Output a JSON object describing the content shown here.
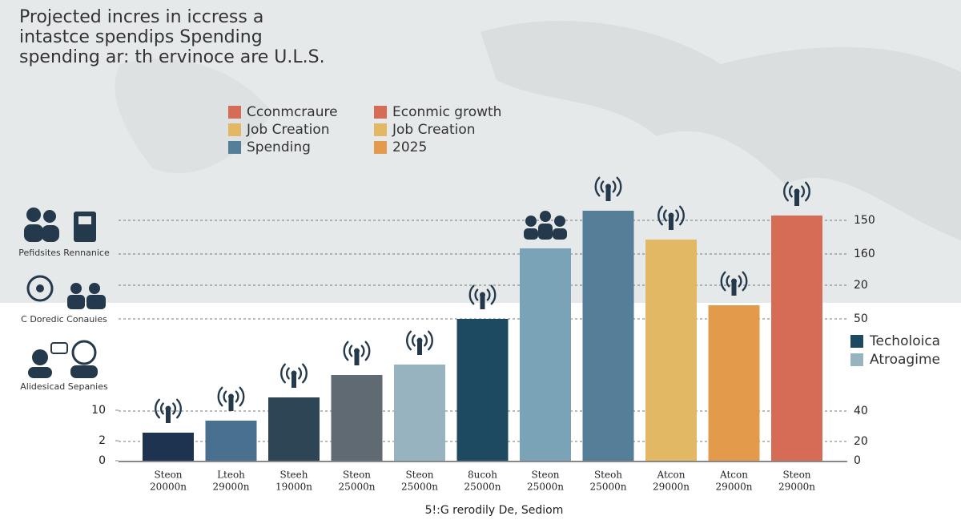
{
  "chart_data": {
    "type": "bar",
    "title": [
      "Projected incres in iccress a",
      "intastce spendips Spending",
      "spending ar: th ervinoce are U.L.S."
    ],
    "x_label": "5!:G rerodily De, Sediom",
    "side_labels": [
      "Pefidsites Rennanice",
      "C Doredic Conauies",
      "Alidesicad Sepanies"
    ],
    "categories": [
      [
        "Steon",
        "20000n"
      ],
      [
        "Lteoh",
        "29000n"
      ],
      [
        "Steeh",
        "19000n"
      ],
      [
        "Steon",
        "25000n"
      ],
      [
        "Steon",
        "25000n"
      ],
      [
        "8ucoh",
        "25000n"
      ],
      [
        "Steon",
        "25000n"
      ],
      [
        "Steoh",
        "25000n"
      ],
      [
        "Atcon",
        "29000n"
      ],
      [
        "Atcon",
        "29000n"
      ],
      [
        "Steon",
        "29000n"
      ]
    ],
    "values": [
      17.5,
      25,
      39.5,
      53.5,
      60,
      88.5,
      132.5,
      156,
      138,
      97,
      153
    ],
    "colors": [
      "#1e3350",
      "#4a7090",
      "#2e4555",
      "#5f6a72",
      "#97b3c0",
      "#1d4a60",
      "#7ba3b7",
      "#557f98",
      "#e2b864",
      "#e39a4a",
      "#d66b56"
    ],
    "ylim": [
      0,
      160
    ],
    "yticks": [
      {
        "value": 31.5,
        "label": "10"
      },
      {
        "value": 12.5,
        "label": "2"
      },
      0
    ],
    "y2lim": [
      0,
      160
    ],
    "y2ticks": [
      150,
      {
        "value": 129,
        "label": "160"
      },
      {
        "value": 109.5,
        "label": "20"
      },
      {
        "value": 88.5,
        "label": "50"
      },
      {
        "value": 31,
        "label": "40"
      },
      {
        "value": 12,
        "label": "20"
      },
      0
    ],
    "grid": true,
    "legend": [
      {
        "name": "Cconmcraure",
        "color": "#d66b56"
      },
      {
        "name": "Job Creation",
        "color": "#e2b864"
      },
      {
        "name": "Spending",
        "color": "#557f98"
      },
      {
        "name": "Econmic growth",
        "color": "#d66b56"
      },
      {
        "name": "Job Creation",
        "color": "#e2b864"
      },
      {
        "name": "2025",
        "color": "#e39a4a"
      }
    ],
    "legend2": [
      {
        "name": "Techoloica",
        "color": "#1d4a60"
      },
      {
        "name": "Atroagime",
        "color": "#97b3c0"
      }
    ]
  }
}
